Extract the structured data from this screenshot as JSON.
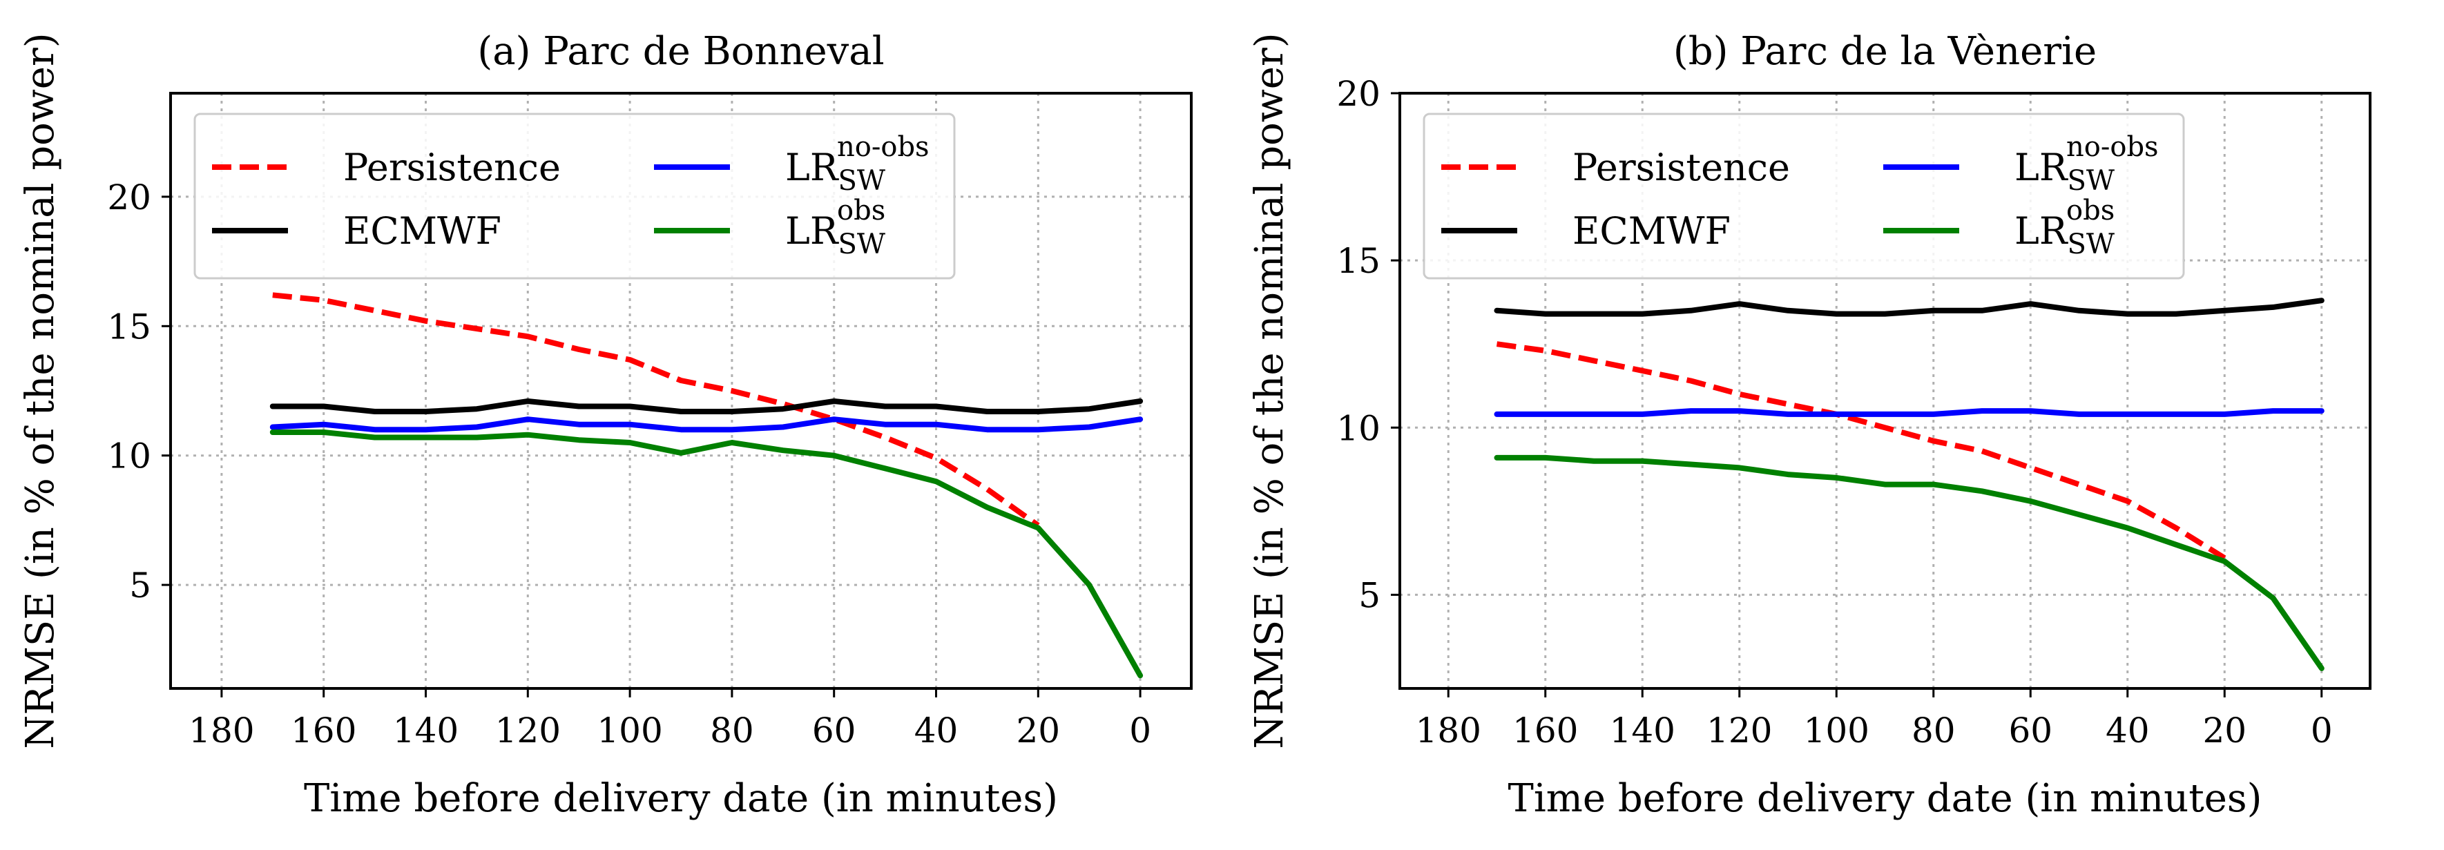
{
  "figure": {
    "domain": "Chart"
  },
  "chart_data": [
    {
      "id": "a",
      "type": "line",
      "title": "(a) Parc de Bonneval",
      "xlabel": "Time before delivery date (in minutes)",
      "ylabel": "NRMSE (in % of the nominal power)",
      "xlim": [
        190,
        -10
      ],
      "ylim": [
        1,
        24
      ],
      "xticks": [
        180,
        160,
        140,
        120,
        100,
        80,
        60,
        40,
        20,
        0
      ],
      "xtick_labels": [
        "180",
        "160",
        "140",
        "120",
        "100",
        "80",
        "60",
        "40",
        "20",
        "0"
      ],
      "yticks": [
        5,
        10,
        15,
        20
      ],
      "ytick_labels": [
        "5",
        "10",
        "15",
        "20"
      ],
      "grid": true,
      "legend_position": "top-left",
      "series": [
        {
          "key": "persistence",
          "name": "Persistence",
          "color": "#ff0000",
          "dashed": true,
          "x": [
            170,
            160,
            150,
            140,
            130,
            120,
            110,
            100,
            90,
            80,
            70,
            60,
            50,
            40,
            30,
            20
          ],
          "values": [
            16.2,
            16.0,
            15.6,
            15.2,
            14.9,
            14.6,
            14.1,
            13.7,
            12.9,
            12.5,
            12.0,
            11.4,
            10.7,
            9.9,
            8.7,
            7.3
          ]
        },
        {
          "key": "ecmwf",
          "name": "ECMWF",
          "color": "#000000",
          "dashed": false,
          "x": [
            170,
            160,
            150,
            140,
            130,
            120,
            110,
            100,
            90,
            80,
            70,
            60,
            50,
            40,
            30,
            20,
            10,
            0
          ],
          "values": [
            11.9,
            11.9,
            11.7,
            11.7,
            11.8,
            12.1,
            11.9,
            11.9,
            11.7,
            11.7,
            11.8,
            12.1,
            11.9,
            11.9,
            11.7,
            11.7,
            11.8,
            12.1
          ]
        },
        {
          "key": "lr_noobs",
          "name": "LR",
          "name_sub": "SW",
          "name_sup": "no-obs",
          "color": "#0000ff",
          "dashed": false,
          "x": [
            170,
            160,
            150,
            140,
            130,
            120,
            110,
            100,
            90,
            80,
            70,
            60,
            50,
            40,
            30,
            20,
            10,
            0
          ],
          "values": [
            11.1,
            11.2,
            11.0,
            11.0,
            11.1,
            11.4,
            11.2,
            11.2,
            11.0,
            11.0,
            11.1,
            11.4,
            11.2,
            11.2,
            11.0,
            11.0,
            11.1,
            11.4
          ]
        },
        {
          "key": "lr_obs",
          "name": "LR",
          "name_sub": "SW",
          "name_sup": "obs",
          "color": "#008000",
          "dashed": false,
          "x": [
            170,
            160,
            150,
            140,
            130,
            120,
            110,
            100,
            90,
            80,
            70,
            60,
            50,
            40,
            30,
            20,
            10,
            0
          ],
          "values": [
            10.9,
            10.9,
            10.7,
            10.7,
            10.7,
            10.8,
            10.6,
            10.5,
            10.1,
            10.5,
            10.2,
            10.0,
            9.5,
            9.0,
            8.0,
            7.2,
            5.0,
            1.5
          ]
        }
      ]
    },
    {
      "id": "b",
      "type": "line",
      "title": "(b) Parc de la Vènerie",
      "xlabel": "Time before delivery date (in minutes)",
      "ylabel": "NRMSE (in % of the nominal power)",
      "xlim": [
        190,
        -10
      ],
      "ylim": [
        2.2,
        20
      ],
      "xticks": [
        180,
        160,
        140,
        120,
        100,
        80,
        60,
        40,
        20,
        0
      ],
      "xtick_labels": [
        "180",
        "160",
        "140",
        "120",
        "100",
        "80",
        "60",
        "40",
        "20",
        "0"
      ],
      "yticks": [
        5,
        10,
        15,
        20
      ],
      "ytick_labels": [
        "5",
        "10",
        "15",
        "20"
      ],
      "grid": true,
      "legend_position": "top-left",
      "series": [
        {
          "key": "persistence",
          "name": "Persistence",
          "color": "#ff0000",
          "dashed": true,
          "x": [
            170,
            160,
            150,
            140,
            130,
            120,
            110,
            100,
            90,
            80,
            70,
            60,
            50,
            40,
            30,
            20
          ],
          "values": [
            12.5,
            12.3,
            12.0,
            11.7,
            11.4,
            11.0,
            10.7,
            10.4,
            10.0,
            9.6,
            9.3,
            8.8,
            8.3,
            7.8,
            7.0,
            6.1
          ]
        },
        {
          "key": "ecmwf",
          "name": "ECMWF",
          "color": "#000000",
          "dashed": false,
          "x": [
            170,
            160,
            150,
            140,
            130,
            120,
            110,
            100,
            90,
            80,
            70,
            60,
            50,
            40,
            30,
            20,
            10,
            0
          ],
          "values": [
            13.5,
            13.4,
            13.4,
            13.4,
            13.5,
            13.7,
            13.5,
            13.4,
            13.4,
            13.5,
            13.5,
            13.7,
            13.5,
            13.4,
            13.4,
            13.5,
            13.6,
            13.8
          ]
        },
        {
          "key": "lr_noobs",
          "name": "LR",
          "name_sub": "SW",
          "name_sup": "no-obs",
          "color": "#0000ff",
          "dashed": false,
          "x": [
            170,
            160,
            150,
            140,
            130,
            120,
            110,
            100,
            90,
            80,
            70,
            60,
            50,
            40,
            30,
            20,
            10,
            0
          ],
          "values": [
            10.4,
            10.4,
            10.4,
            10.4,
            10.5,
            10.5,
            10.4,
            10.4,
            10.4,
            10.4,
            10.5,
            10.5,
            10.4,
            10.4,
            10.4,
            10.4,
            10.5,
            10.5
          ]
        },
        {
          "key": "lr_obs",
          "name": "LR",
          "name_sub": "SW",
          "name_sup": "obs",
          "color": "#008000",
          "dashed": false,
          "x": [
            170,
            160,
            150,
            140,
            130,
            120,
            110,
            100,
            90,
            80,
            70,
            60,
            50,
            40,
            30,
            20,
            10,
            0
          ],
          "values": [
            9.1,
            9.1,
            9.0,
            9.0,
            8.9,
            8.8,
            8.6,
            8.5,
            8.3,
            8.3,
            8.1,
            7.8,
            7.4,
            7.0,
            6.5,
            6.0,
            4.9,
            2.8
          ]
        }
      ]
    }
  ]
}
